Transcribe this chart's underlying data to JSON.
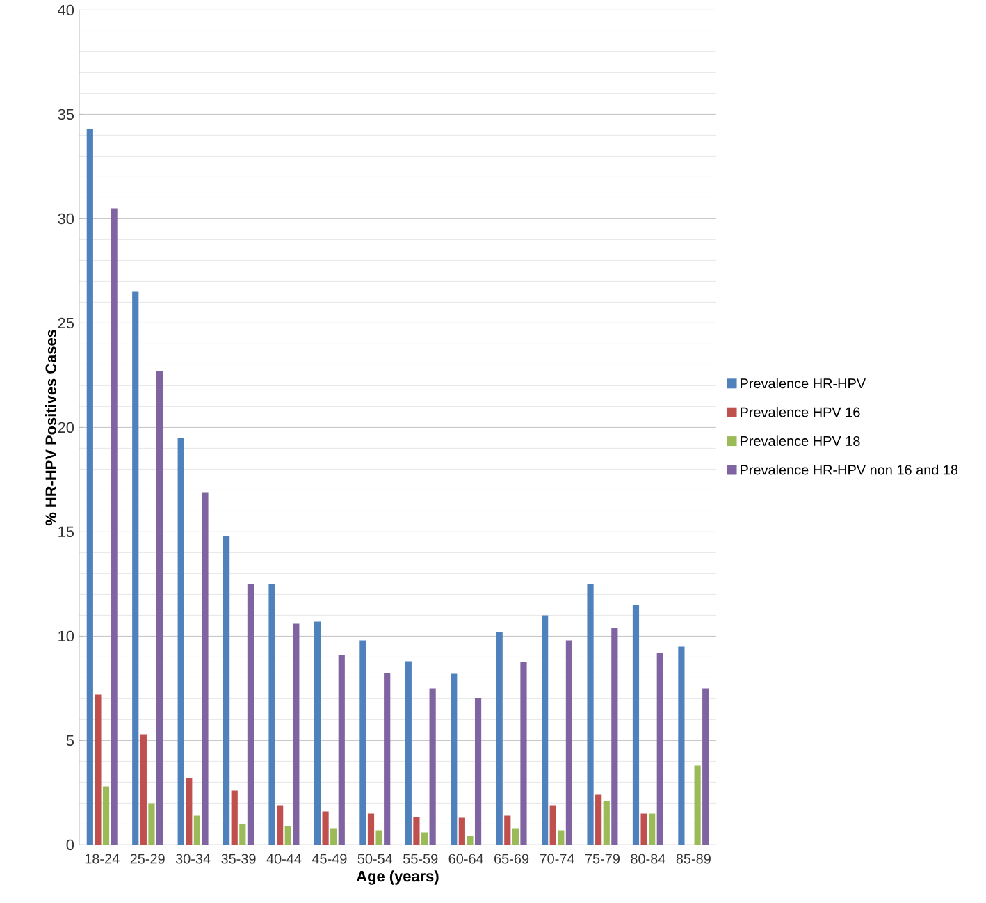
{
  "chart_data": {
    "type": "bar",
    "xlabel": "Age (years)",
    "ylabel": "% HR-HPV  Positives Cases",
    "categories": [
      "18-24",
      "25-29",
      "30-34",
      "35-39",
      "40-44",
      "45-49",
      "50-54",
      "55-59",
      "60-64",
      "65-69",
      "70-74",
      "75-79",
      "80-84",
      "85-89"
    ],
    "series": [
      {
        "name": "Prevalence HR-HPV",
        "color": "#4f81bd",
        "values": [
          34.3,
          26.5,
          19.5,
          14.8,
          12.5,
          10.7,
          9.8,
          8.8,
          8.2,
          10.2,
          11.0,
          12.5,
          11.5,
          9.5
        ]
      },
      {
        "name": "Prevalence HPV 16",
        "color": "#c0504d",
        "values": [
          7.2,
          5.3,
          3.2,
          2.6,
          1.9,
          1.6,
          1.5,
          1.35,
          1.3,
          1.4,
          1.9,
          2.4,
          1.5,
          0
        ]
      },
      {
        "name": "Prevalence HPV 18",
        "color": "#9bbb59",
        "values": [
          2.8,
          2.0,
          1.4,
          1.0,
          0.9,
          0.8,
          0.7,
          0.6,
          0.45,
          0.8,
          0.7,
          2.1,
          1.5,
          3.8
        ]
      },
      {
        "name": "Prevalence HR-HPV non 16 and 18",
        "color": "#8064a2",
        "values": [
          30.5,
          22.7,
          16.9,
          12.5,
          10.6,
          9.1,
          8.25,
          7.5,
          7.05,
          8.75,
          9.8,
          10.4,
          9.2,
          7.5
        ]
      }
    ],
    "ylim": [
      0,
      40
    ],
    "yticks": [
      0,
      5,
      10,
      15,
      20,
      25,
      30,
      35,
      40
    ],
    "grid": "y",
    "legend": "right"
  }
}
